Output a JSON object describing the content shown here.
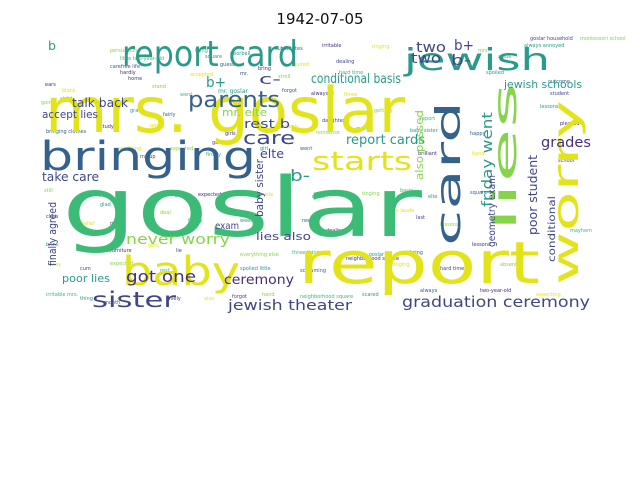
{
  "title": "1942-07-05",
  "background": "#ffffff",
  "palette": {
    "yellow": "#e2e419",
    "green": "#3bbb75",
    "teal": "#2a9a89",
    "blue": "#35618d",
    "indigo": "#3f4788",
    "purple": "#462f7e",
    "lime": "#85d54a"
  },
  "words": [
    {
      "text": "goslar",
      "color": "green"
    },
    {
      "text": "mrs. goslar",
      "color": "yellow"
    },
    {
      "text": "report",
      "color": "yellow"
    },
    {
      "text": "report card",
      "color": "teal"
    },
    {
      "text": "bringing",
      "color": "blue"
    },
    {
      "text": "baby",
      "color": "yellow"
    },
    {
      "text": "card",
      "color": "blue"
    },
    {
      "text": "worry",
      "color": "yellow"
    },
    {
      "text": "jewish",
      "color": "teal"
    },
    {
      "text": "lies",
      "color": "lime"
    },
    {
      "text": "starts",
      "color": "yellow"
    },
    {
      "text": "parents",
      "color": "blue"
    },
    {
      "text": "sister",
      "color": "indigo"
    },
    {
      "text": "care",
      "color": "indigo"
    },
    {
      "text": "graduation ceremony",
      "color": "indigo"
    },
    {
      "text": "jewish theater",
      "color": "indigo"
    },
    {
      "text": "never worry",
      "color": "lime"
    },
    {
      "text": "got one",
      "color": "purple"
    },
    {
      "text": "ceremony",
      "color": "purple"
    },
    {
      "text": "friday went",
      "color": "teal"
    },
    {
      "text": "grades",
      "color": "purple"
    },
    {
      "text": "report cards",
      "color": "teal"
    },
    {
      "text": "conditional basis",
      "color": "teal"
    },
    {
      "text": "two",
      "color": "indigo"
    },
    {
      "text": "two",
      "color": "indigo"
    },
    {
      "text": "b+",
      "color": "indigo"
    },
    {
      "text": "b-",
      "color": "indigo"
    },
    {
      "text": "b-",
      "color": "teal"
    },
    {
      "text": "b+",
      "color": "teal"
    },
    {
      "text": "b",
      "color": "teal"
    },
    {
      "text": "c-",
      "color": "indigo"
    },
    {
      "text": "rest b",
      "color": "indigo"
    },
    {
      "text": "talk back",
      "color": "indigo"
    },
    {
      "text": "accept lies",
      "color": "indigo"
    },
    {
      "text": "take care",
      "color": "indigo"
    },
    {
      "text": "poor student",
      "color": "indigo"
    },
    {
      "text": "conditional",
      "color": "indigo"
    },
    {
      "text": "jewish schools",
      "color": "teal"
    },
    {
      "text": "also passed",
      "color": "lime"
    },
    {
      "text": "exam",
      "color": "indigo"
    },
    {
      "text": "lies also",
      "color": "indigo"
    },
    {
      "text": "poor lies",
      "color": "teal"
    },
    {
      "text": "finally agreed",
      "color": "indigo"
    },
    {
      "text": "mr. elte",
      "color": "lime"
    },
    {
      "text": "elte",
      "color": "indigo"
    },
    {
      "text": "geometry exam",
      "color": "indigo"
    },
    {
      "text": "baby sister",
      "color": "indigo"
    }
  ]
}
